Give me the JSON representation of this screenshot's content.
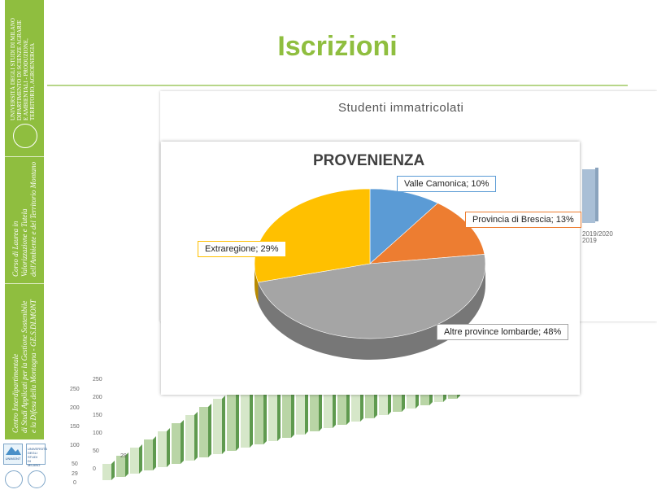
{
  "slide": {
    "title": "Iscrizioni"
  },
  "sidebar": {
    "university_lines": [
      "UNIVERSITÀ DEGLI STUDI DI MILANO",
      "DIPARTIMENTO DI SCIENZE AGRARIE",
      "E AMBIENTALI - PRODUZIONE,",
      "TERRITORIO, AGROENERGIA"
    ],
    "course_lines": [
      "Corso di Laurea in",
      "Valorizzazione e Tutela",
      "dell'Ambiente e del Territorio Montano"
    ],
    "center_lines": [
      "Centro Interdipartimentale",
      "di Studi Applicati per la Gestione Sostenibile",
      "e la Difesa della Montagna - GE.S.DI.MONT"
    ],
    "logo_unimont": "UNIMONT",
    "logo_unimi_lines": [
      "UNIVERSITÀ",
      "DEGLI STUDI",
      "DI MILANO"
    ]
  },
  "colors": {
    "accent_green": "#8fbe3f",
    "valle": "#5b9bd5",
    "brescia": "#ed7d31",
    "altre": "#a5a5a5",
    "extra": "#ffc000"
  },
  "background_chart": {
    "title": "Studenti immatricolati",
    "right_tick_labels": [
      "2019/2020",
      "2019"
    ],
    "y_ticks_front": [
      "0",
      "50",
      "100",
      "150",
      "200",
      "250"
    ],
    "y_ticks_back": [
      "0",
      "50",
      "100",
      "150",
      "200",
      "250"
    ],
    "small_labels": [
      "29",
      "29"
    ]
  },
  "chart_data": {
    "type": "pie",
    "title": "PROVENIENZA",
    "slices": [
      {
        "name": "Valle Camonica",
        "value": 10,
        "label": "Valle Camonica; 10%",
        "color": "#5b9bd5"
      },
      {
        "name": "Provincia di Brescia",
        "value": 13,
        "label": "Provincia di Brescia; 13%",
        "color": "#ed7d31"
      },
      {
        "name": "Altre province lombarde",
        "value": 48,
        "label": "Altre province lombarde; 48%",
        "color": "#a5a5a5"
      },
      {
        "name": "Extraregione",
        "value": 29,
        "label": "Extraregione; 29%",
        "color": "#ffc000"
      }
    ]
  }
}
